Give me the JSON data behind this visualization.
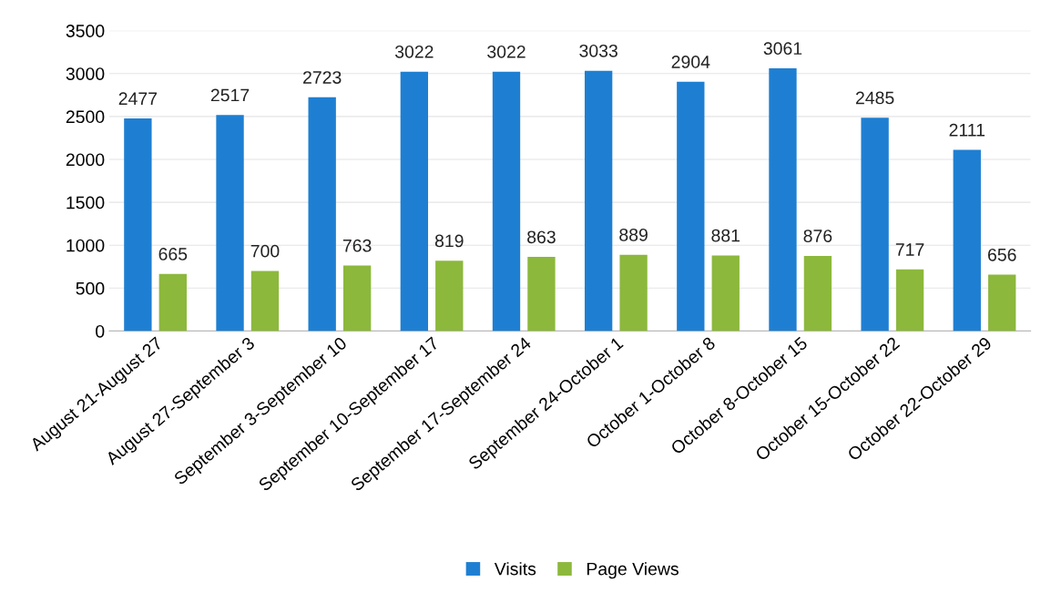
{
  "chart_data": {
    "type": "bar",
    "categories": [
      "August 21-August 27",
      "August 27-September 3",
      "September 3-September 10",
      "September 10-September 17",
      "September 17-September 24",
      "September 24-October 1",
      "October 1-October 8",
      "October 8-October 15",
      "October 15-October 22",
      "October 22-October 29"
    ],
    "series": [
      {
        "name": "Visits",
        "color": "#1e7fd2",
        "values": [
          2477,
          2517,
          2723,
          3022,
          3022,
          3033,
          2904,
          3061,
          2485,
          2111
        ]
      },
      {
        "name": "Page Views",
        "color": "#8cb83c",
        "values": [
          665,
          700,
          763,
          819,
          863,
          889,
          881,
          876,
          717,
          656
        ]
      }
    ],
    "ylim": [
      0,
      3500
    ],
    "yticks": [
      0,
      500,
      1000,
      1500,
      2000,
      2500,
      3000,
      3500
    ],
    "grid": "y",
    "legend": "bottom",
    "data_labels": true
  }
}
